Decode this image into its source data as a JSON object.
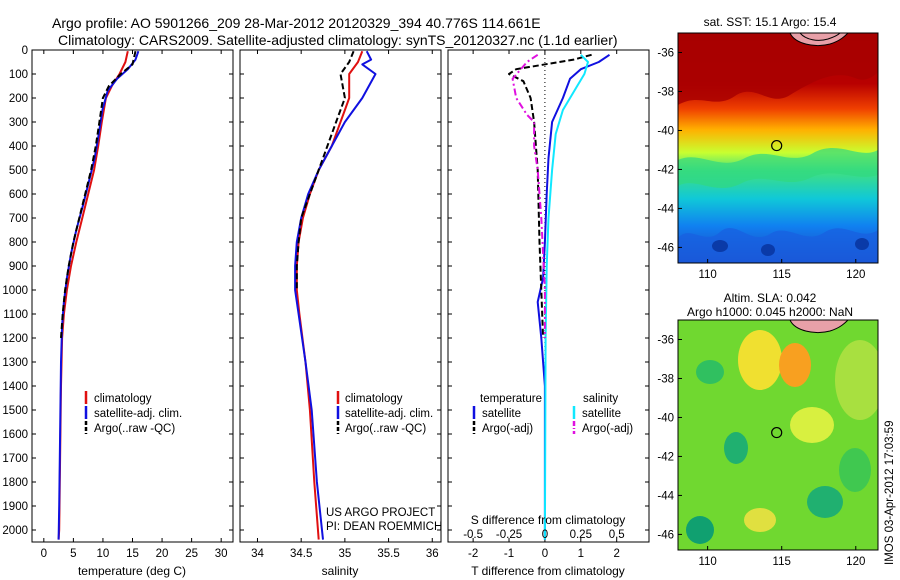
{
  "title_line1": "Argo profile: AO 5901266_209 28-Mar-2012 20120329_394 40.776S 114.661E",
  "title_line2": "Climatology: CARS2009. Satellite-adjusted climatology: synTS_20120327.nc (1.1d earlier)",
  "footer_text": "IMOS 03-Apr-2012 17:03:59",
  "colors": {
    "climatology": "#e01010",
    "satellite": "#1010e0",
    "argo": "#000000",
    "sat_salinity": "#10e8ff",
    "argo_salinity": "#e010e0"
  },
  "chart_data": [
    {
      "type": "line",
      "name": "temperature-profile",
      "xlabel": "temperature (deg C)",
      "ylabel": "",
      "xlim": [
        -2,
        32
      ],
      "ylim": [
        2050,
        0
      ],
      "x_ticks": [
        "0",
        "5",
        "10",
        "15",
        "20",
        "25",
        "30"
      ],
      "y_ticks": [
        "0",
        "100",
        "200",
        "300",
        "400",
        "500",
        "600",
        "700",
        "800",
        "900",
        "1000",
        "1100",
        "1200",
        "1300",
        "1400",
        "1500",
        "1600",
        "1700",
        "1800",
        "1900",
        "2000"
      ],
      "legend": [
        "climatology",
        "satellite-adj. clim.",
        "Argo(..raw -QC)"
      ],
      "legend_position": "lower-right",
      "series": [
        {
          "name": "climatology",
          "style": "solid",
          "x": [
            14.2,
            13.8,
            12.8,
            11.5,
            10.5,
            9.8,
            9.2,
            8.5,
            7.5,
            6.5,
            5.5,
            4.6,
            3.9,
            3.4,
            3.1,
            2.9,
            2.8,
            2.7,
            2.6,
            2.5
          ],
          "y": [
            5,
            50,
            100,
            150,
            200,
            300,
            400,
            500,
            600,
            700,
            800,
            900,
            1000,
            1100,
            1200,
            1400,
            1600,
            1800,
            2000,
            2040
          ]
        },
        {
          "name": "satellite-adj. clim.",
          "style": "solid",
          "x": [
            16.0,
            15.5,
            14.2,
            12.4,
            10.8,
            9.9,
            9.3,
            8.6,
            7.6,
            6.6,
            5.5,
            4.6,
            3.9,
            3.4,
            3.1,
            2.9,
            2.8,
            2.7,
            2.6,
            2.5
          ],
          "y": [
            5,
            40,
            80,
            120,
            170,
            250,
            350,
            450,
            550,
            650,
            750,
            850,
            950,
            1050,
            1150,
            1300,
            1500,
            1700,
            1900,
            2040
          ]
        },
        {
          "name": "Argo(..raw -QC)",
          "style": "dash",
          "x": [
            15.5,
            15.0,
            13.0,
            11.0,
            10.0,
            9.4,
            8.8,
            8.0,
            7.0,
            6.0,
            5.0,
            4.2,
            3.6,
            3.2,
            2.9
          ],
          "y": [
            5,
            60,
            100,
            150,
            200,
            300,
            400,
            500,
            600,
            700,
            800,
            900,
            1000,
            1100,
            1200
          ]
        }
      ]
    },
    {
      "type": "line",
      "name": "salinity-profile",
      "xlabel": "salinity",
      "ylabel": "",
      "xlim": [
        33.8,
        36.1
      ],
      "ylim": [
        2050,
        0
      ],
      "x_ticks": [
        "34",
        "34.5",
        "35",
        "35.5",
        "36"
      ],
      "legend": [
        "climatology",
        "satellite-adj. clim.",
        "Argo(..raw -QC)"
      ],
      "legend_position": "lower-right",
      "annotations": [
        "US ARGO PROJECT",
        "PI: DEAN ROEMMICH"
      ],
      "series": [
        {
          "name": "climatology",
          "style": "solid",
          "x": [
            35.2,
            35.15,
            35.05,
            35.05,
            35.0,
            34.95,
            34.85,
            34.7,
            34.6,
            34.52,
            34.47,
            34.45,
            34.45,
            34.48,
            34.55,
            34.6,
            34.65,
            34.7
          ],
          "y": [
            5,
            50,
            100,
            200,
            250,
            300,
            400,
            500,
            600,
            700,
            800,
            900,
            1000,
            1100,
            1300,
            1500,
            1800,
            2040
          ]
        },
        {
          "name": "satellite-adj. clim.",
          "style": "solid",
          "x": [
            35.25,
            35.3,
            35.2,
            35.35,
            35.2,
            35.0,
            34.85,
            34.7,
            34.58,
            34.5,
            34.45,
            34.43,
            34.43,
            34.47,
            34.55,
            34.62,
            34.68,
            34.75
          ],
          "y": [
            5,
            40,
            60,
            100,
            200,
            300,
            400,
            500,
            600,
            700,
            800,
            900,
            1000,
            1100,
            1300,
            1500,
            1800,
            2040
          ]
        },
        {
          "name": "Argo(..raw -QC)",
          "style": "dash",
          "x": [
            35.1,
            35.05,
            34.95,
            35.0,
            34.9,
            34.8,
            34.7,
            34.6,
            34.5,
            34.47,
            34.45,
            34.45
          ],
          "y": [
            5,
            50,
            100,
            200,
            300,
            400,
            500,
            600,
            700,
            800,
            900,
            1000
          ]
        }
      ]
    },
    {
      "type": "line",
      "name": "difference-profile",
      "xlabel": "T difference from climatology",
      "xlabel_top": "S difference from climatology",
      "xlim": [
        -2.7,
        2.9
      ],
      "ylim": [
        2050,
        0
      ],
      "x_ticks": [
        "-2",
        "-1",
        "0",
        "1",
        "2"
      ],
      "x2_ticks": [
        "-0.5",
        "-0.25",
        "0",
        "0.25",
        "0.5"
      ],
      "legend_headers": [
        "temperature",
        "salinity"
      ],
      "legend": [
        "satellite",
        "Argo(-adj)",
        "satellite",
        "Argo(-adj)"
      ],
      "legend_position": "lower",
      "series": [
        {
          "name": "temperature satellite",
          "style": "solid",
          "x": [
            1.8,
            1.5,
            1.0,
            0.7,
            0.5,
            0.2,
            0.1,
            0.05,
            0.0,
            -0.05,
            -0.2,
            -0.1,
            0.0,
            0.0,
            0.0
          ],
          "y": [
            20,
            50,
            80,
            120,
            200,
            300,
            450,
            600,
            800,
            950,
            1050,
            1200,
            1400,
            1700,
            2040
          ]
        },
        {
          "name": "temperature Argo(-adj)",
          "style": "dash",
          "x": [
            1.3,
            0.8,
            -0.8,
            -1.0,
            -0.6,
            -0.4,
            -0.3,
            -0.2,
            -0.15,
            -0.1,
            -0.05
          ],
          "y": [
            20,
            40,
            80,
            100,
            130,
            200,
            300,
            500,
            800,
            1000,
            1200
          ]
        },
        {
          "name": "salinity satellite",
          "style": "solid",
          "x": [
            1.0,
            1.2,
            1.1,
            0.9,
            0.5,
            0.3,
            0.2,
            0.1,
            0.05,
            0.02,
            0.0
          ],
          "y": [
            20,
            50,
            100,
            150,
            250,
            350,
            500,
            700,
            900,
            1200,
            2040
          ]
        },
        {
          "name": "salinity Argo(-adj)",
          "style": "dashdot",
          "x": [
            -0.2,
            -0.5,
            -0.9,
            -0.8,
            -0.5,
            -0.3,
            -0.3,
            -0.2,
            -0.1,
            0.0,
            0.0
          ],
          "y": [
            20,
            50,
            120,
            200,
            270,
            300,
            400,
            500,
            700,
            1000,
            1200
          ]
        }
      ]
    },
    {
      "type": "heatmap",
      "name": "sst-map",
      "title": "sat. SST: 15.1  Argo: 15.4",
      "x_ticks": [
        "110",
        "115",
        "120"
      ],
      "y_ticks": [
        "-36",
        "-38",
        "-40",
        "-42",
        "-44",
        "-46"
      ],
      "xlim": [
        108,
        121.5
      ],
      "ylim": [
        -46.8,
        -35
      ],
      "marker": {
        "lon": 114.661,
        "lat": -40.776
      }
    },
    {
      "type": "heatmap",
      "name": "sla-map",
      "title_line1": "Altim. SLA: 0.042",
      "title_line2": "Argo h1000: 0.045 h2000: NaN",
      "x_ticks": [
        "110",
        "115",
        "120"
      ],
      "y_ticks": [
        "-36",
        "-38",
        "-40",
        "-42",
        "-44",
        "-46"
      ],
      "xlim": [
        108,
        121.5
      ],
      "ylim": [
        -46.8,
        -35
      ],
      "marker": {
        "lon": 114.661,
        "lat": -40.776
      }
    }
  ]
}
